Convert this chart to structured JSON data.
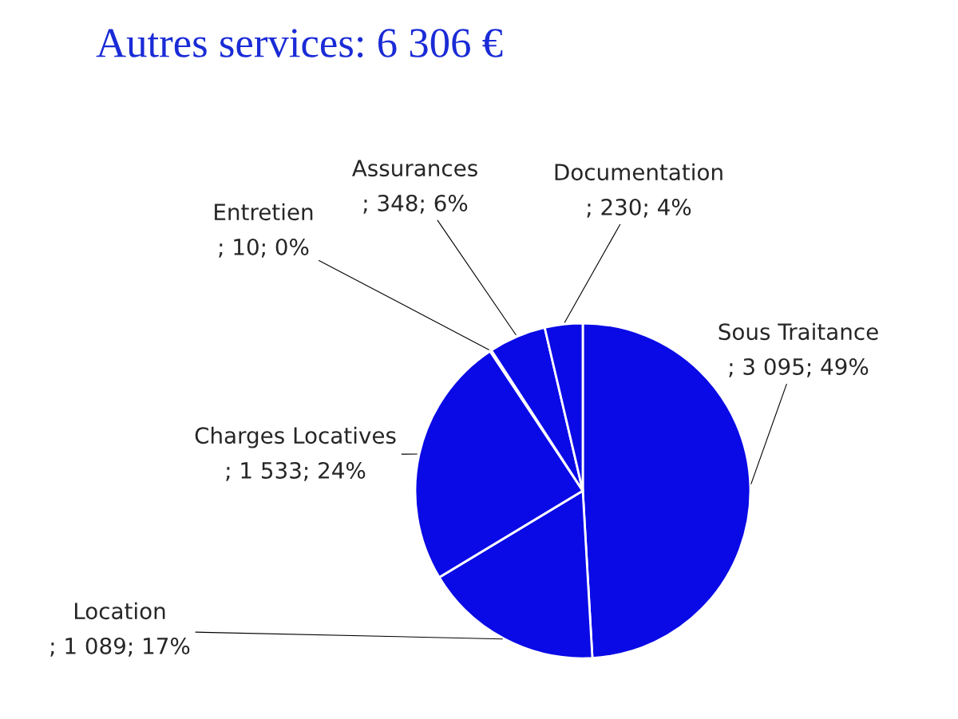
{
  "chart_data": {
    "type": "pie",
    "title": "Autres services: 6 306 €",
    "categories": [
      "Sous Traitance",
      "Location",
      "Charges Locatives",
      "Entretien",
      "Assurances",
      "Documentation"
    ],
    "values": [
      3095,
      1089,
      1533,
      10,
      348,
      230
    ],
    "value_labels": [
      "; 3 095; 49%",
      "; 1 089; 17%",
      "; 1 533; 24%",
      "; 10; 0%",
      "; 348; 6%",
      "; 230; 4%"
    ],
    "colors": [
      "#0a0ae6",
      "#0a0ae6",
      "#0a0ae6",
      "#0a0ae6",
      "#0a0ae6",
      "#0a0ae6"
    ],
    "legend": false
  }
}
